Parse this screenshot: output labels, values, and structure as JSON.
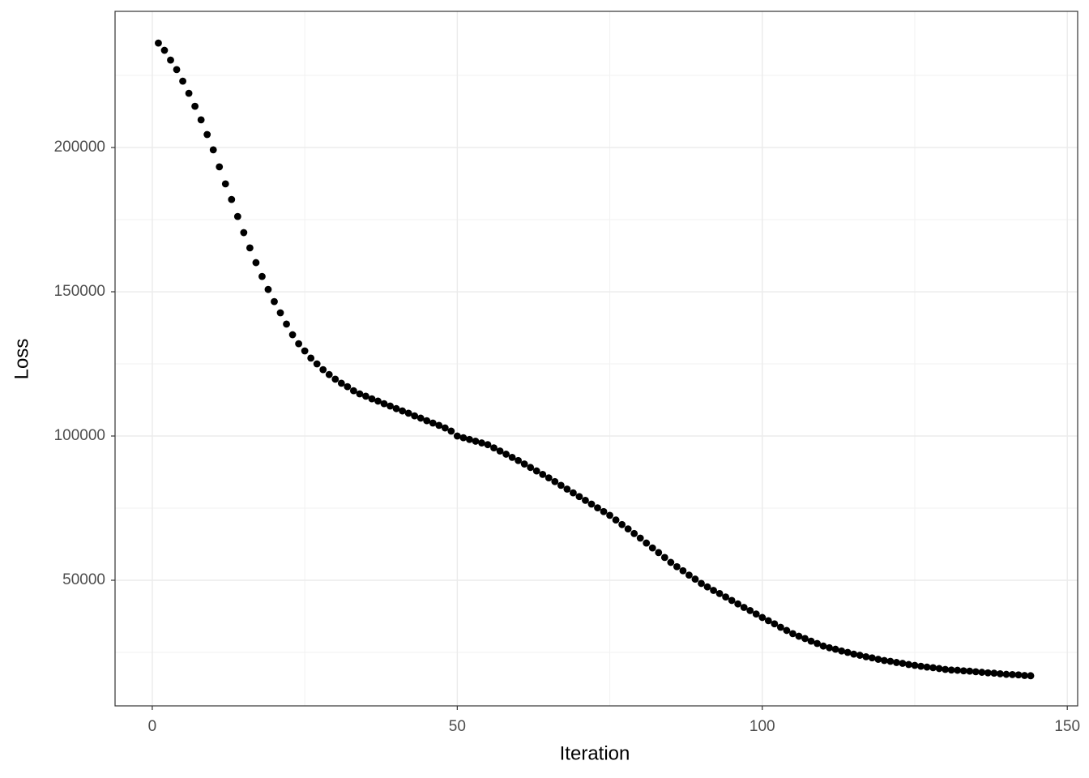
{
  "chart_data": {
    "type": "scatter",
    "x_label": "Iteration",
    "y_label": "Loss",
    "x": [
      1,
      2,
      3,
      4,
      5,
      6,
      7,
      8,
      9,
      10,
      11,
      12,
      13,
      14,
      15,
      16,
      17,
      18,
      19,
      20,
      21,
      22,
      23,
      24,
      25,
      26,
      27,
      28,
      29,
      30,
      31,
      32,
      33,
      34,
      35,
      36,
      37,
      38,
      39,
      40,
      41,
      42,
      43,
      44,
      45,
      46,
      47,
      48,
      49,
      50,
      51,
      52,
      53,
      54,
      55,
      56,
      57,
      58,
      59,
      60,
      61,
      62,
      63,
      64,
      65,
      66,
      67,
      68,
      69,
      70,
      71,
      72,
      73,
      74,
      75,
      76,
      77,
      78,
      79,
      80,
      81,
      82,
      83,
      84,
      85,
      86,
      87,
      88,
      89,
      90,
      91,
      92,
      93,
      94,
      95,
      96,
      97,
      98,
      99,
      100,
      101,
      102,
      103,
      104,
      105,
      106,
      107,
      108,
      109,
      110,
      111,
      112,
      113,
      114,
      115,
      116,
      117,
      118,
      119,
      120,
      121,
      122,
      123,
      124,
      125,
      126,
      127,
      128,
      129,
      130,
      131,
      132,
      133,
      134,
      135,
      136,
      137,
      138,
      139,
      140,
      141,
      142,
      143,
      144
    ],
    "series": [
      {
        "color": "#000000",
        "values": [
          236200,
          233700,
          230300,
          227000,
          223000,
          218800,
          214300,
          209600,
          204500,
          199200,
          193300,
          187400,
          182000,
          176100,
          170500,
          165200,
          160100,
          155300,
          150800,
          146600,
          142700,
          138800,
          135100,
          132000,
          129500,
          127000,
          125000,
          123000,
          121300,
          119700,
          118300,
          117100,
          115700,
          114600,
          113800,
          112900,
          112100,
          111200,
          110400,
          109500,
          108700,
          107900,
          107000,
          106200,
          105300,
          104500,
          103700,
          102800,
          101700,
          100000,
          99400,
          98800,
          98200,
          97600,
          97000,
          95900,
          94800,
          93700,
          92600,
          91500,
          90300,
          89100,
          87900,
          86700,
          85500,
          84200,
          82900,
          81600,
          80300,
          79000,
          77700,
          76400,
          75100,
          73800,
          72500,
          70900,
          69300,
          67800,
          66200,
          64600,
          62900,
          61200,
          59600,
          57900,
          56200,
          54700,
          53300,
          51800,
          50400,
          48900,
          47700,
          46500,
          45400,
          44200,
          43000,
          41800,
          40600,
          39500,
          38300,
          37100,
          36000,
          34900,
          33700,
          32600,
          31500,
          30600,
          29800,
          28900,
          28100,
          27200,
          26600,
          26100,
          25500,
          25000,
          24400,
          24000,
          23500,
          23100,
          22600,
          22200,
          21900,
          21500,
          21200,
          20800,
          20500,
          20200,
          19900,
          19700,
          19400,
          19100,
          18900,
          18800,
          18600,
          18500,
          18300,
          18100,
          17900,
          17800,
          17600,
          17400,
          17300,
          17200,
          17000,
          16900
        ]
      }
    ],
    "xlim": [
      -6.1,
      151.7
    ],
    "ylim": [
      6460,
      247200
    ],
    "xticks": [
      0,
      50,
      100,
      150
    ],
    "yticks": [
      50000,
      100000,
      150000,
      200000
    ],
    "grid": true
  }
}
